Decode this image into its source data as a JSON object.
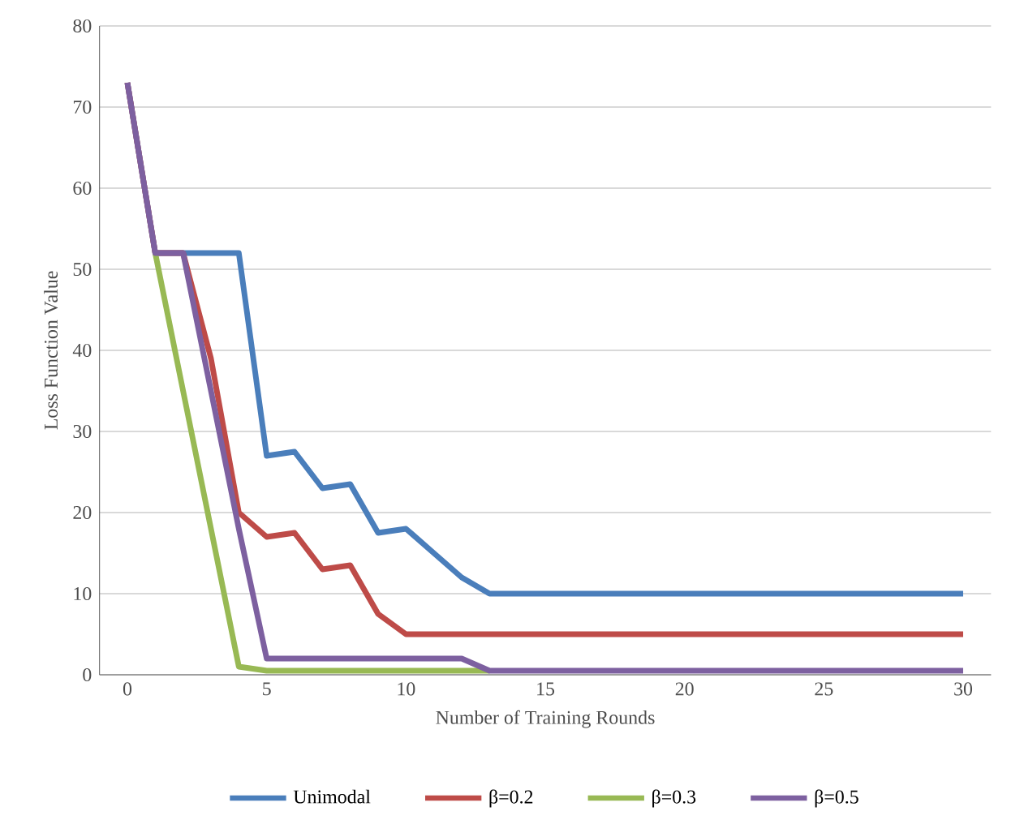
{
  "chart_data": {
    "type": "line",
    "xlabel": "Number of Training Rounds",
    "ylabel": "Loss Function Value",
    "x": [
      0,
      1,
      2,
      3,
      4,
      5,
      6,
      7,
      8,
      9,
      10,
      11,
      12,
      13,
      14,
      15,
      16,
      17,
      18,
      19,
      20,
      21,
      22,
      23,
      24,
      25,
      26,
      27,
      28,
      29,
      30
    ],
    "series": [
      {
        "name": "Unimodal",
        "color": "#4a7ebb",
        "values": [
          73,
          52,
          52,
          52,
          52,
          27,
          27.5,
          23,
          23.5,
          17.5,
          18,
          15,
          12,
          10,
          10,
          10,
          10,
          10,
          10,
          10,
          10,
          10,
          10,
          10,
          10,
          10,
          10,
          10,
          10,
          10,
          10
        ]
      },
      {
        "name": "β=0.2",
        "color": "#be4b48",
        "values": [
          73,
          52,
          52,
          39,
          20,
          17,
          17.5,
          13,
          13.5,
          7.5,
          5,
          5,
          5,
          5,
          5,
          5,
          5,
          5,
          5,
          5,
          5,
          5,
          5,
          5,
          5,
          5,
          5,
          5,
          5,
          5,
          5
        ]
      },
      {
        "name": "β=0.3",
        "color": "#98b954",
        "values": [
          null,
          52,
          35,
          18,
          1,
          0.5,
          0.5,
          0.5,
          0.5,
          0.5,
          0.5,
          0.5,
          0.5,
          0.5,
          null,
          null,
          null,
          null,
          null,
          null,
          null,
          null,
          null,
          null,
          null,
          null,
          null,
          null,
          null,
          null,
          null
        ]
      },
      {
        "name": "β=0.5",
        "color": "#7d60a0",
        "values": [
          73,
          52,
          52,
          35,
          18,
          2,
          2,
          2,
          2,
          2,
          2,
          2,
          2,
          0.5,
          0.5,
          0.5,
          0.5,
          0.5,
          0.5,
          0.5,
          0.5,
          0.5,
          0.5,
          0.5,
          0.5,
          0.5,
          0.5,
          0.5,
          0.5,
          0.5,
          0.5
        ]
      }
    ],
    "xlim": [
      -1,
      31
    ],
    "xticks": [
      0,
      5,
      10,
      15,
      20,
      25,
      30
    ],
    "ylim": [
      0,
      80
    ],
    "yticks": [
      0,
      10,
      20,
      30,
      40,
      50,
      60,
      70,
      80
    ],
    "grid": "y",
    "legend": "bottom",
    "marker": "none",
    "line_style": "solid"
  }
}
